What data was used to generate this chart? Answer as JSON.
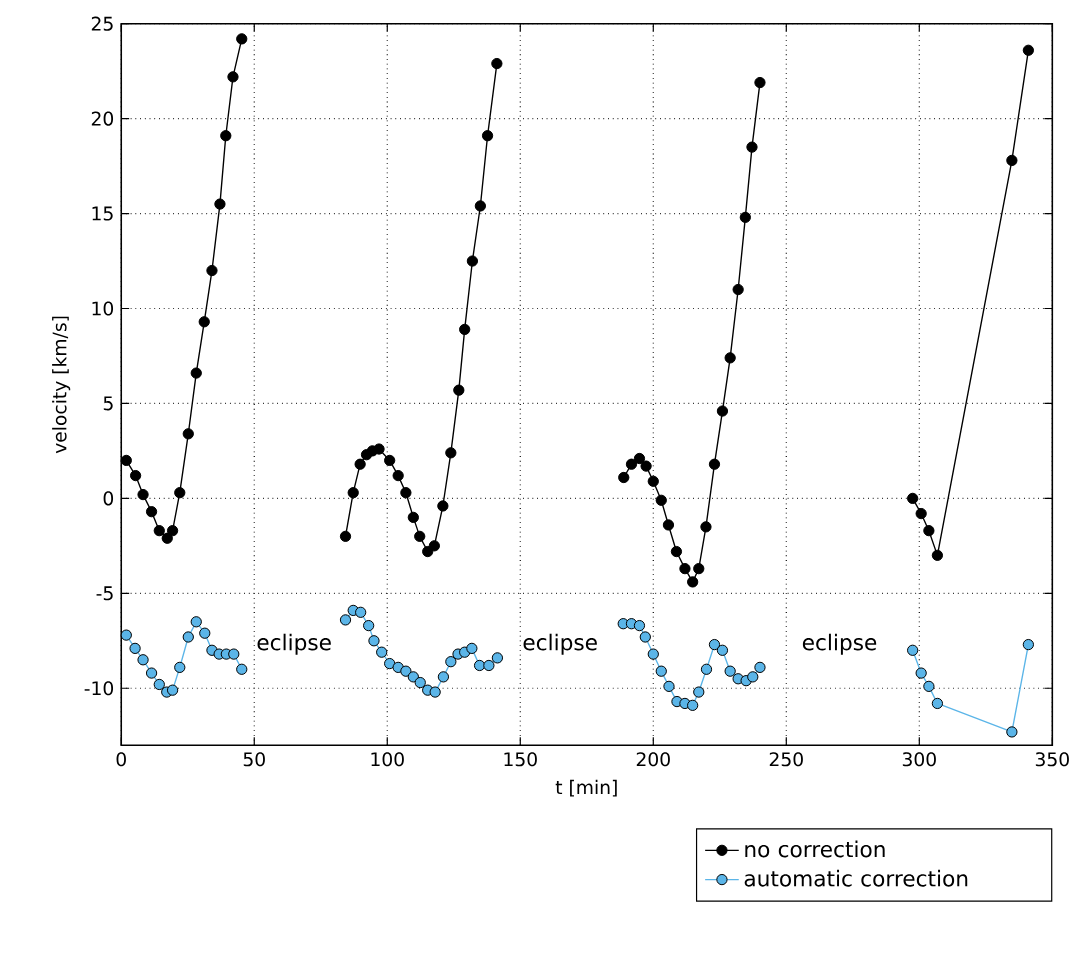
{
  "chart_data": {
    "type": "line",
    "xlabel": "t [min]",
    "ylabel": "velocity [km/s]",
    "xlim": [
      0,
      350
    ],
    "ylim": [
      -13,
      25
    ],
    "xticks": [
      0,
      50,
      100,
      150,
      200,
      250,
      300,
      350
    ],
    "yticks": [
      -10,
      -5,
      0,
      5,
      10,
      15,
      20,
      25
    ],
    "grid": true,
    "legend": "bottom",
    "marker": "circle",
    "line_style": "solid",
    "series": [
      {
        "name": "no correction",
        "color": "#000000",
        "x": [
          1.9,
          5.4,
          8.2,
          11.4,
          14.3,
          17.3,
          19.3,
          22.0,
          25.2,
          28.2,
          31.2,
          34.1,
          37.1,
          39.3,
          42.0,
          45.3,
          65,
          84.3,
          87.2,
          89.8,
          92.2,
          94.4,
          96.9,
          100.9,
          104.1,
          107.0,
          109.8,
          112.2,
          115.2,
          117.7,
          120.9,
          123.9,
          126.9,
          129.1,
          132.0,
          135.0,
          137.7,
          141.2,
          165,
          188.9,
          191.8,
          194.8,
          197.3,
          200.0,
          203.0,
          205.7,
          208.7,
          211.9,
          214.8,
          217.1,
          219.8,
          223.0,
          226.0,
          228.9,
          231.9,
          234.6,
          237.1,
          240.1,
          270,
          297.5,
          300.7,
          303.6,
          306.8,
          334.8,
          341.0
        ],
        "values": [
          2.0,
          1.2,
          0.2,
          -0.7,
          -1.7,
          -2.1,
          -1.7,
          0.3,
          3.4,
          6.6,
          9.3,
          12.0,
          15.5,
          19.1,
          22.2,
          24.2,
          null,
          -2.0,
          0.3,
          1.8,
          2.3,
          2.5,
          2.6,
          2.0,
          1.2,
          0.3,
          -1.0,
          -2.0,
          -2.8,
          -2.5,
          -0.4,
          2.4,
          5.7,
          8.9,
          12.5,
          15.4,
          19.1,
          22.9,
          null,
          1.1,
          1.8,
          2.1,
          1.7,
          0.9,
          -0.1,
          -1.4,
          -2.8,
          -3.7,
          -4.4,
          -3.7,
          -1.5,
          1.8,
          4.6,
          7.4,
          11.0,
          14.8,
          18.5,
          21.9,
          null,
          0.0,
          -0.8,
          -1.7,
          -3.0,
          17.8,
          23.6
        ]
      },
      {
        "name": "automatic correction",
        "color": "#5bb5e8",
        "x": [
          1.9,
          5.2,
          8.2,
          11.4,
          14.3,
          17.1,
          19.3,
          22.0,
          25.2,
          28.2,
          31.4,
          34.1,
          36.8,
          39.5,
          42.3,
          45.3,
          65,
          84.3,
          87.2,
          90.0,
          93.0,
          95.0,
          97.9,
          100.9,
          104.1,
          107.0,
          109.8,
          112.4,
          115.2,
          118.0,
          121.1,
          123.9,
          126.6,
          129.1,
          131.8,
          134.7,
          138.2,
          141.4,
          165,
          188.7,
          191.8,
          194.8,
          197.0,
          200.0,
          203.0,
          205.9,
          208.9,
          211.9,
          214.8,
          217.1,
          220.0,
          223.0,
          226.0,
          228.9,
          231.9,
          234.9,
          237.4,
          240.1,
          270,
          297.5,
          300.7,
          303.6,
          306.8,
          334.8,
          341.0
        ],
        "values": [
          -7.2,
          -7.9,
          -8.5,
          -9.2,
          -9.8,
          -10.2,
          -10.1,
          -8.9,
          -7.3,
          -6.5,
          -7.1,
          -8.0,
          -8.2,
          -8.2,
          -8.2,
          -9.0,
          null,
          -6.4,
          -5.9,
          -6.0,
          -6.7,
          -7.5,
          -8.1,
          -8.7,
          -8.9,
          -9.1,
          -9.4,
          -9.7,
          -10.1,
          -10.2,
          -9.4,
          -8.6,
          -8.2,
          -8.1,
          -7.9,
          -8.8,
          -8.8,
          -8.4,
          null,
          -6.6,
          -6.6,
          -6.7,
          -7.3,
          -8.2,
          -9.1,
          -9.9,
          -10.7,
          -10.8,
          -10.9,
          -10.2,
          -9.0,
          -7.7,
          -8.0,
          -9.1,
          -9.5,
          -9.6,
          -9.4,
          -8.9,
          null,
          -8.0,
          -9.2,
          -9.9,
          -10.8,
          -12.3,
          -7.7
        ]
      }
    ],
    "annotations": [
      "eclipse",
      "eclipse",
      "eclipse"
    ]
  }
}
